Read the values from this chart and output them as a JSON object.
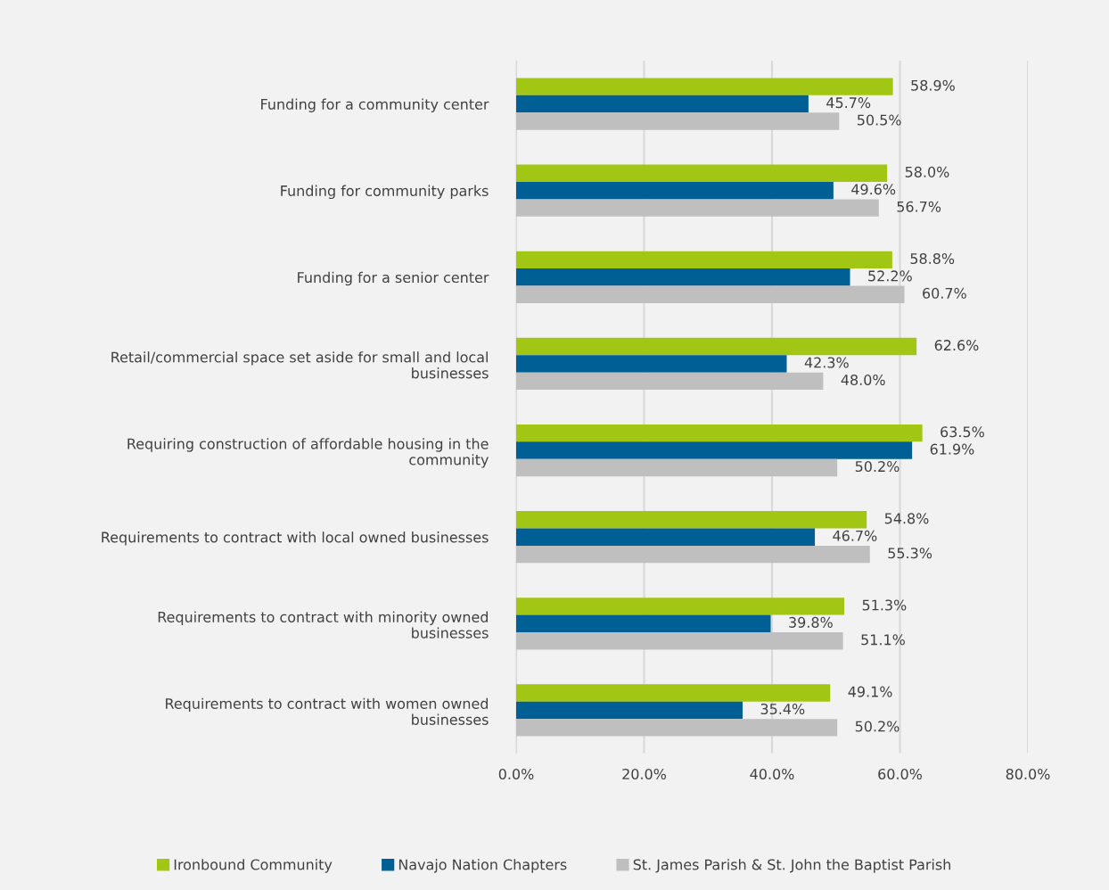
{
  "chart_data": {
    "type": "bar",
    "orientation": "horizontal",
    "categories": [
      "Funding for a community center",
      "Funding for community parks",
      "Funding for a senior center",
      "Retail/commercial space set aside for small and local\nbusinesses",
      "Requiring construction of affordable housing in the\ncommunity",
      "Requirements to contract with local owned businesses",
      "Requirements to contract with minority owned\nbusinesses",
      "Requirements to contract with women owned\nbusinesses"
    ],
    "series": [
      {
        "name": "Ironbound Community",
        "color": "#a2c614",
        "values": [
          58.9,
          58.0,
          58.8,
          62.6,
          63.5,
          54.8,
          51.3,
          49.1
        ],
        "value_labels": [
          "58.9%",
          "58.0%",
          "58.8%",
          "62.6%",
          "63.5%",
          "54.8%",
          "51.3%",
          "49.1%"
        ]
      },
      {
        "name": "Navajo Nation Chapters",
        "color": "#005f94",
        "values": [
          45.7,
          49.6,
          52.2,
          42.3,
          61.9,
          46.7,
          39.8,
          35.4
        ],
        "value_labels": [
          "45.7%",
          "49.6%",
          "52.2%",
          "42.3%",
          "61.9%",
          "46.7%",
          "39.8%",
          "35.4%"
        ]
      },
      {
        "name": "St. James Parish & St. John the Baptist Parish",
        "color": "#bfbfbf",
        "values": [
          50.5,
          56.7,
          60.7,
          48.0,
          50.2,
          55.3,
          51.1,
          50.2
        ],
        "value_labels": [
          "50.5%",
          "56.7%",
          "60.7%",
          "48.0%",
          "50.2%",
          "55.3%",
          "51.1%",
          "50.2%"
        ]
      }
    ],
    "xlim": [
      0,
      80
    ],
    "xticks": [
      {
        "value": 0,
        "label": "0.0%"
      },
      {
        "value": 20,
        "label": "20.0%"
      },
      {
        "value": 40,
        "label": "40.0%"
      },
      {
        "value": 60,
        "label": "60.0%"
      },
      {
        "value": 80,
        "label": "80.0%"
      }
    ],
    "grid": "x",
    "legend": "bottom"
  }
}
